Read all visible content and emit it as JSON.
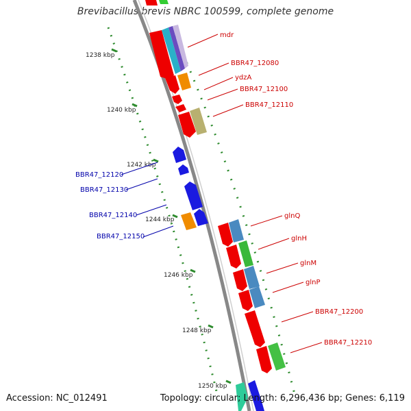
{
  "title": "Brevibacillus brevis NBRC 100599, complete genome",
  "footer": {
    "accession": "Accession: NC_012491",
    "topology": "Topology: circular; Length: 6,296,436 bp; Genes: 6,119"
  },
  "colors": {
    "forward_labels": "#cc0000",
    "reverse_labels": "#0000aa",
    "backbone": "#888888",
    "tick": "#2e8b2e"
  },
  "ticks": [
    "1238 kbp",
    "1240 kbp",
    "1242 kbp",
    "1244 kbp",
    "1246 kbp",
    "1248 kbp",
    "1250 kbp"
  ],
  "forward_genes": [
    "mdr",
    "BBR47_12080",
    "ydzA",
    "BBR47_12100",
    "BBR47_12110",
    "glnQ",
    "glnH",
    "glnM",
    "glnP",
    "BBR47_12200",
    "BBR47_12210"
  ],
  "reverse_genes": [
    "BBR47_12120",
    "BBR47_12130",
    "BBR47_12140",
    "BBR47_12150"
  ]
}
